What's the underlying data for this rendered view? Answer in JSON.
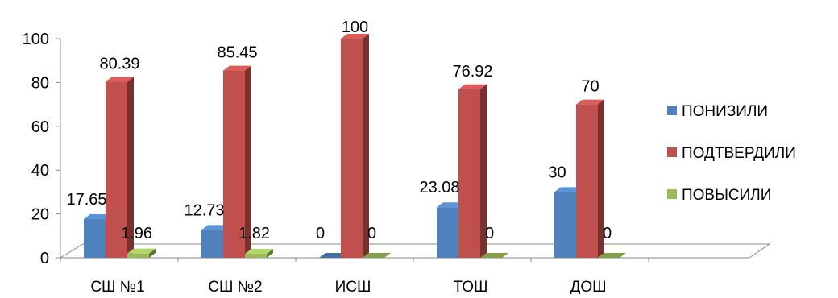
{
  "header_fragment_left": "",
  "header_fragment_right": "",
  "chart_data": {
    "type": "bar",
    "style": "3d-clustered-column",
    "categories": [
      "СШ №1",
      "СШ №2",
      "ИСШ",
      "ТОШ",
      "ДОШ"
    ],
    "series": [
      {
        "name": "ПОНИЗИЛИ",
        "color": "#4F81BD",
        "values": [
          17.65,
          12.73,
          0,
          23.08,
          30
        ]
      },
      {
        "name": "ПОДТВЕРДИЛИ",
        "color": "#C0504D",
        "values": [
          80.39,
          85.45,
          100,
          76.92,
          70
        ]
      },
      {
        "name": "ПОВЫСИЛИ",
        "color": "#9BBB59",
        "values": [
          1.96,
          1.82,
          0,
          0,
          0
        ]
      }
    ],
    "data_labels": [
      [
        "17.65",
        "12.73",
        "0",
        "23.08",
        "30"
      ],
      [
        "80.39",
        "85.45",
        "100",
        "76.92",
        "70"
      ],
      [
        "1.96",
        "1.82",
        "0",
        "0",
        "0"
      ]
    ],
    "yticks": [
      "0",
      "20",
      "40",
      "60",
      "80",
      "100"
    ],
    "ylim": [
      0,
      100
    ],
    "grid": false,
    "legend_position": "right"
  }
}
